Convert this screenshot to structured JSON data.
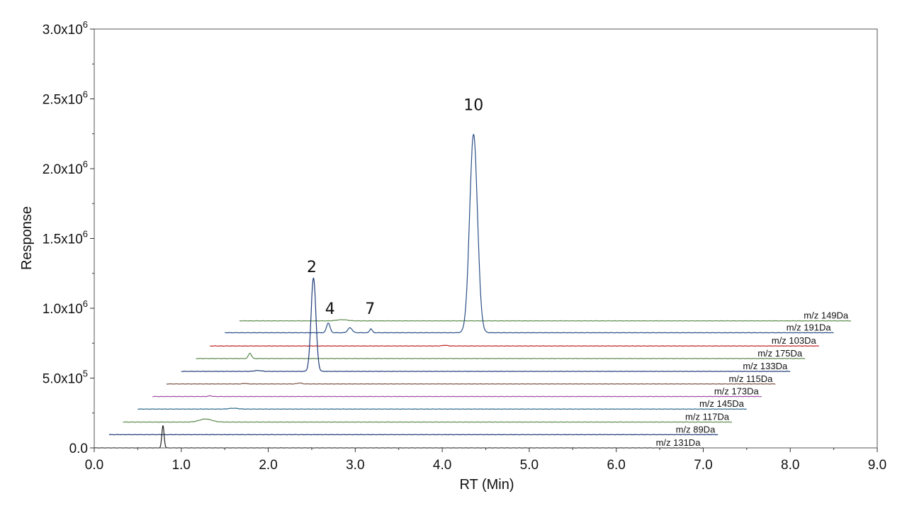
{
  "chart_data": {
    "type": "line",
    "xlabel": "RT (Min)",
    "ylabel": "Response",
    "xlim": [
      0,
      9
    ],
    "ylim": [
      0,
      3000000
    ],
    "x_ticks": [
      "0.0",
      "1.0",
      "2.0",
      "3.0",
      "4.0",
      "5.0",
      "6.0",
      "7.0",
      "8.0",
      "9.0"
    ],
    "y_ticks": [
      {
        "mant": "0.0",
        "exp": ""
      },
      {
        "mant": "5.0x10",
        "exp": "5"
      },
      {
        "mant": "1.0x10",
        "exp": "6"
      },
      {
        "mant": "1.5x10",
        "exp": "6"
      },
      {
        "mant": "2.0x10",
        "exp": "6"
      },
      {
        "mant": "2.5x10",
        "exp": "6"
      },
      {
        "mant": "3.0x10",
        "exp": "6"
      }
    ],
    "grid": false,
    "series": [
      {
        "name": "m/z 149Da",
        "color": "#5a8a4a",
        "x_start": 1.67,
        "x_end": 8.7,
        "baseline": 910000,
        "peaks": [
          {
            "rt": 2.85,
            "height": 8000,
            "width": 0.06
          }
        ]
      },
      {
        "name": "m/z 191Da",
        "color": "#2a4f86",
        "x_start": 1.5,
        "x_end": 8.5,
        "baseline": 825000,
        "peaks": [
          {
            "rt": 4.36,
            "height": 1420000,
            "width": 0.045
          },
          {
            "rt": 2.69,
            "height": 70000,
            "width": 0.02
          },
          {
            "rt": 2.94,
            "height": 35000,
            "width": 0.025
          },
          {
            "rt": 3.18,
            "height": 28000,
            "width": 0.015
          }
        ]
      },
      {
        "name": "m/z 103Da",
        "color": "#c02020",
        "x_start": 1.33,
        "x_end": 8.33,
        "baseline": 730000,
        "peaks": [
          {
            "rt": 4.03,
            "height": 5000,
            "width": 0.03
          }
        ]
      },
      {
        "name": "m/z 175Da",
        "color": "#5a8a4a",
        "x_start": 1.17,
        "x_end": 8.17,
        "baseline": 640000,
        "peaks": [
          {
            "rt": 1.79,
            "height": 38000,
            "width": 0.018
          }
        ]
      },
      {
        "name": "m/z 133Da",
        "color": "#1e3a78",
        "x_start": 1.0,
        "x_end": 8.0,
        "baseline": 548000,
        "peaks": [
          {
            "rt": 2.52,
            "height": 670000,
            "width": 0.028
          },
          {
            "rt": 1.88,
            "height": 6000,
            "width": 0.04
          }
        ]
      },
      {
        "name": "m/z 115Da",
        "color": "#7a5040",
        "x_start": 0.83,
        "x_end": 7.83,
        "baseline": 458000,
        "peaks": [
          {
            "rt": 2.36,
            "height": 7000,
            "width": 0.025
          },
          {
            "rt": 1.73,
            "height": 4000,
            "width": 0.02
          }
        ]
      },
      {
        "name": "m/z 173Da",
        "color": "#a04aa0",
        "x_start": 0.67,
        "x_end": 7.67,
        "baseline": 368000,
        "peaks": [
          {
            "rt": 1.33,
            "height": 5000,
            "width": 0.02
          }
        ]
      },
      {
        "name": "m/z 145Da",
        "color": "#2a6a8a",
        "x_start": 0.5,
        "x_end": 7.5,
        "baseline": 278000,
        "peaks": [
          {
            "rt": 1.6,
            "height": 6000,
            "width": 0.05
          }
        ]
      },
      {
        "name": "m/z 117Da",
        "color": "#5a8a4a",
        "x_start": 0.33,
        "x_end": 7.33,
        "baseline": 185000,
        "peaks": [
          {
            "rt": 1.28,
            "height": 22000,
            "width": 0.07
          }
        ]
      },
      {
        "name": "m/z 89Da",
        "color": "#1e3a78",
        "x_start": 0.17,
        "x_end": 7.17,
        "baseline": 95000,
        "peaks": []
      },
      {
        "name": "m/z 131Da",
        "color": "#222222",
        "x_start": 0.0,
        "x_end": 7.0,
        "baseline": 0,
        "peaks": [
          {
            "rt": 0.79,
            "height": 160000,
            "width": 0.013
          }
        ]
      }
    ],
    "annotations": [
      {
        "text": "10",
        "x": 4.36,
        "y": 2420000
      },
      {
        "text": "2",
        "x": 2.5,
        "y": 1260000
      },
      {
        "text": "4",
        "x": 2.71,
        "y": 960000
      },
      {
        "text": "7",
        "x": 3.17,
        "y": 960000
      }
    ]
  }
}
